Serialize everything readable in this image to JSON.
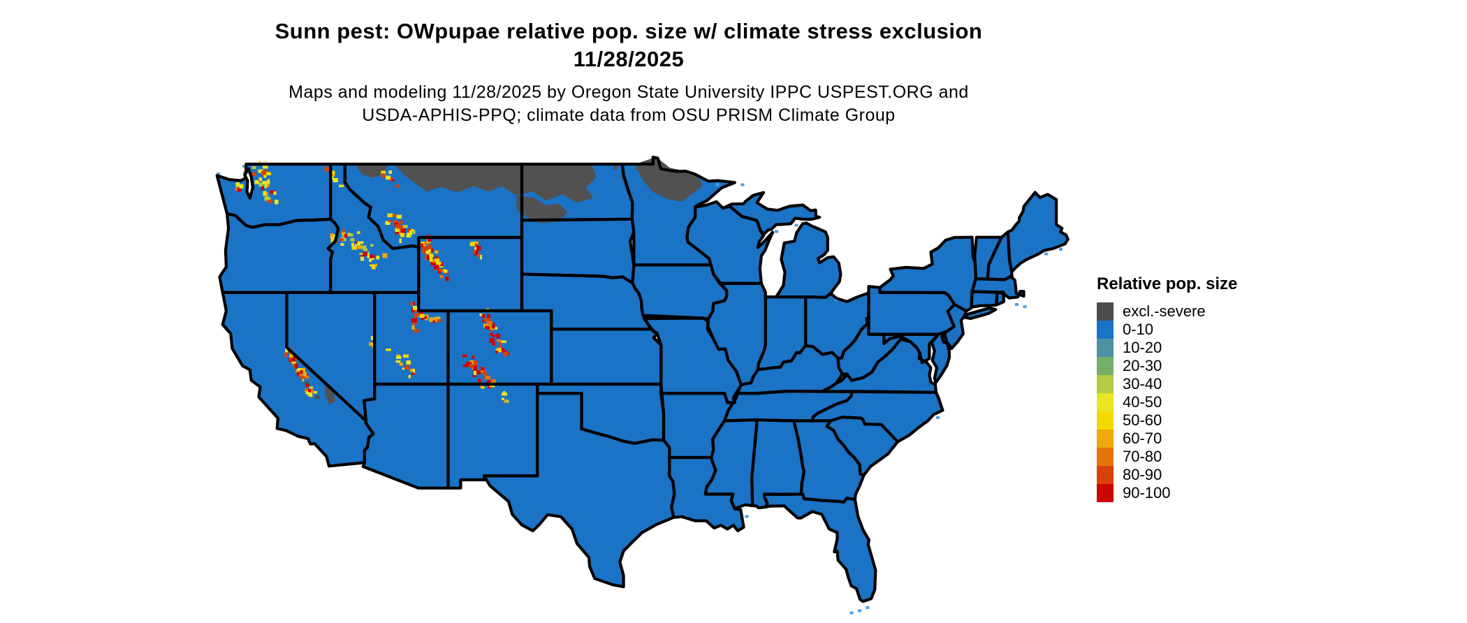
{
  "header": {
    "title_line1": "Sunn pest: OWpupae relative pop. size w/ climate stress exclusion",
    "title_line2": "11/28/2025",
    "subtitle_line1": "Maps and modeling 11/28/2025 by Oregon State University IPPC USPEST.ORG and",
    "subtitle_line2": "USDA-APHIS-PPQ; climate data from OSU PRISM Climate Group"
  },
  "legend": {
    "title": "Relative pop. size",
    "items": [
      {
        "label": "excl.-severe",
        "color": "#4D4D4D"
      },
      {
        "label": "0-10",
        "color": "#1B73C6"
      },
      {
        "label": "10-20",
        "color": "#4D91A2"
      },
      {
        "label": "20-30",
        "color": "#77AE6B"
      },
      {
        "label": "30-40",
        "color": "#B4CC42"
      },
      {
        "label": "40-50",
        "color": "#E7E524"
      },
      {
        "label": "50-60",
        "color": "#F4D800"
      },
      {
        "label": "60-70",
        "color": "#F0A80A"
      },
      {
        "label": "70-80",
        "color": "#E57506"
      },
      {
        "label": "80-90",
        "color": "#D84206"
      },
      {
        "label": "90-100",
        "color": "#CB0706"
      }
    ]
  },
  "map": {
    "land_category_label": "0-10",
    "land_color": "#1B73C6",
    "exclusion_color": "#515151",
    "state_border_color": "#000000",
    "coastal_water_color": "#4D9FE3",
    "background_color": "#FFFFFF"
  }
}
